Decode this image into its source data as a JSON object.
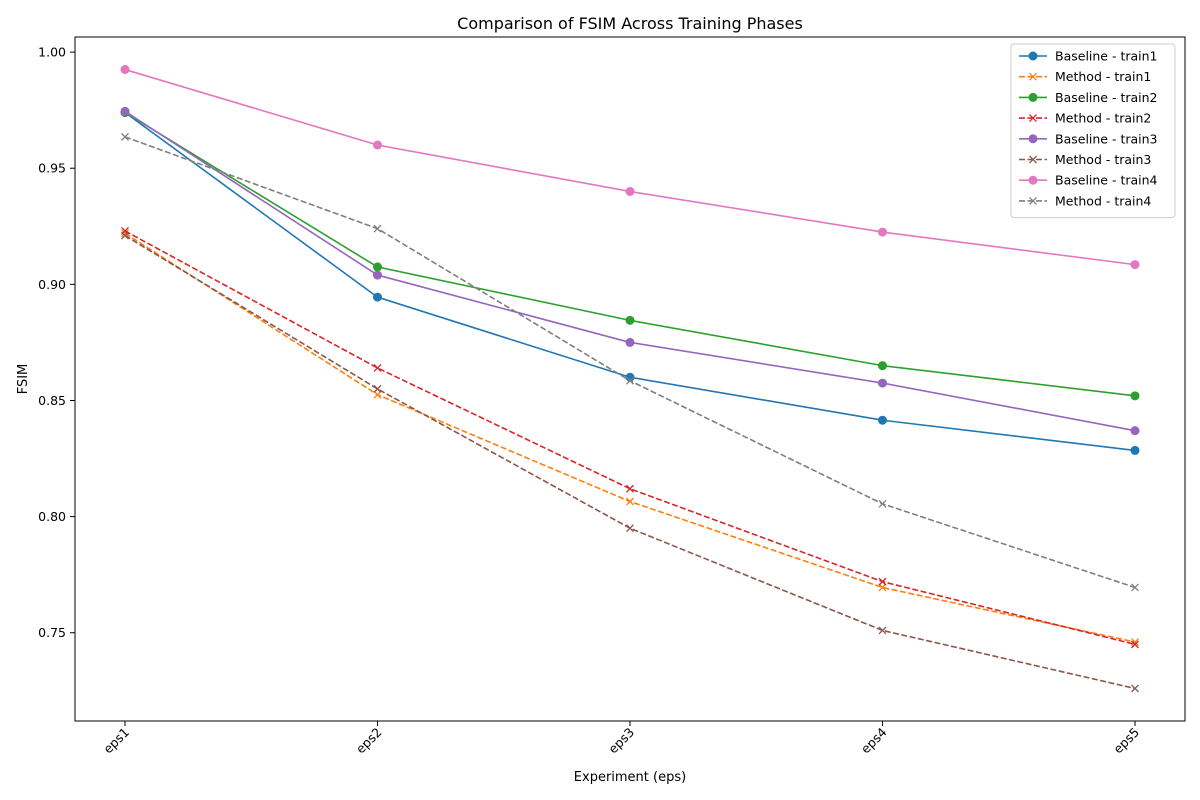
{
  "chart_data": {
    "type": "line",
    "title": "Comparison of FSIM Across Training Phases",
    "xlabel": "Experiment (eps)",
    "ylabel": "FSIM",
    "categories": [
      "eps1",
      "eps2",
      "eps3",
      "eps4",
      "eps5"
    ],
    "ylim": [
      0.712,
      1.0065
    ],
    "yticks": [
      "0.75",
      "0.80",
      "0.85",
      "0.90",
      "0.95",
      "1.00"
    ],
    "grid": false,
    "legend_position": "top-right",
    "series": [
      {
        "name": "Baseline - train1",
        "color": "#1f77b4",
        "style": "solid",
        "marker": "circle",
        "values": [
          0.974,
          0.8945,
          0.86,
          0.8415,
          0.8285
        ]
      },
      {
        "name": "Method - train1",
        "color": "#ff7f0e",
        "style": "dashed",
        "marker": "x",
        "values": [
          0.922,
          0.8525,
          0.8065,
          0.7695,
          0.746
        ]
      },
      {
        "name": "Baseline - train2",
        "color": "#2ca02c",
        "style": "solid",
        "marker": "circle",
        "values": [
          0.974,
          0.9075,
          0.8845,
          0.865,
          0.852
        ]
      },
      {
        "name": "Method - train2",
        "color": "#d62728",
        "style": "dashed",
        "marker": "x",
        "values": [
          0.923,
          0.864,
          0.812,
          0.772,
          0.745
        ]
      },
      {
        "name": "Baseline - train3",
        "color": "#9467bd",
        "style": "solid",
        "marker": "circle",
        "values": [
          0.9745,
          0.904,
          0.875,
          0.8575,
          0.837
        ]
      },
      {
        "name": "Method - train3",
        "color": "#8c564b",
        "style": "dashed",
        "marker": "x",
        "values": [
          0.921,
          0.855,
          0.795,
          0.751,
          0.726
        ]
      },
      {
        "name": "Baseline - train4",
        "color": "#e377c2",
        "style": "solid",
        "marker": "circle",
        "values": [
          0.9925,
          0.96,
          0.94,
          0.9225,
          0.9085
        ]
      },
      {
        "name": "Method - train4",
        "color": "#7f7f7f",
        "style": "dashed",
        "marker": "x",
        "values": [
          0.9635,
          0.924,
          0.8585,
          0.8055,
          0.7695
        ]
      }
    ]
  }
}
